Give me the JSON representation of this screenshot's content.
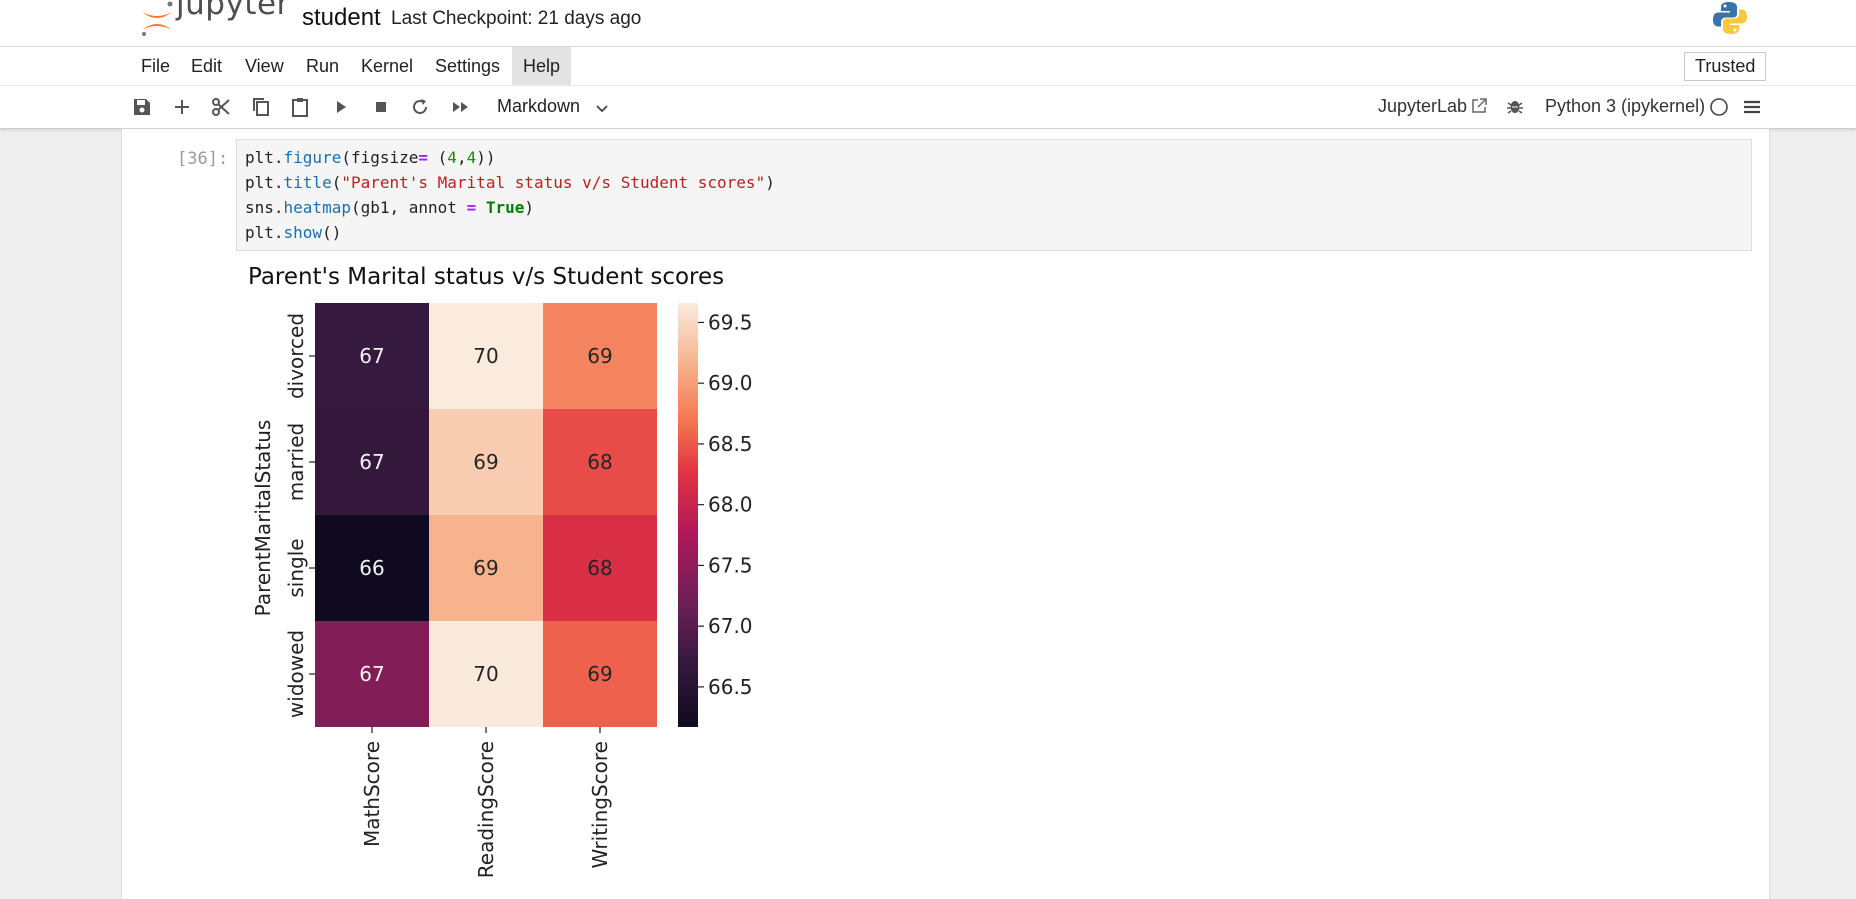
{
  "header": {
    "logo_text": "jupyter",
    "notebook_name": "student",
    "checkpoint": "Last Checkpoint: 21 days ago"
  },
  "menubar": {
    "items": [
      "File",
      "Edit",
      "View",
      "Run",
      "Kernel",
      "Settings",
      "Help"
    ],
    "active_item": "Help",
    "trusted_label": "Trusted"
  },
  "toolbar": {
    "icons": [
      "save-icon",
      "add-icon",
      "cut-icon",
      "copy-icon",
      "paste-icon",
      "run-icon",
      "stop-icon",
      "restart-icon",
      "fast-forward-icon"
    ],
    "cell_type": "Markdown",
    "jupyterlab_label": "JupyterLab",
    "kernel_name": "Python 3 (ipykernel)"
  },
  "cell": {
    "prompt": "[36]:",
    "code": [
      "plt.figure(figsize= (4,4))",
      "plt.title(\"Parent's Marital status v/s Student scores\")",
      "sns.heatmap(gb1, annot = True)",
      "plt.show()"
    ]
  },
  "chart_data": {
    "type": "heatmap",
    "title": "Parent's Marital status v/s Student scores",
    "ylabel": "ParentMaritalStatus",
    "xlabel": "",
    "rows": [
      "divorced",
      "married",
      "single",
      "widowed"
    ],
    "columns": [
      "MathScore",
      "ReadingScore",
      "WritingScore"
    ],
    "values": [
      [
        66.69,
        69.66,
        68.8
      ],
      [
        66.66,
        69.39,
        68.42
      ],
      [
        66.17,
        69.16,
        68.17
      ],
      [
        67.37,
        69.65,
        68.56
      ]
    ],
    "annotations": [
      [
        "67",
        "70",
        "69"
      ],
      [
        "67",
        "69",
        "68"
      ],
      [
        "66",
        "69",
        "68"
      ],
      [
        "67",
        "70",
        "69"
      ]
    ],
    "colormap": "rocket",
    "colorbar_range": [
      66.17,
      69.66
    ],
    "colorbar_ticks": [
      "66.5",
      "67.0",
      "67.5",
      "68.0",
      "68.5",
      "69.0",
      "69.5"
    ],
    "colorbar_tick_values": [
      66.5,
      67.0,
      67.5,
      68.0,
      68.5,
      69.0,
      69.5
    ]
  }
}
